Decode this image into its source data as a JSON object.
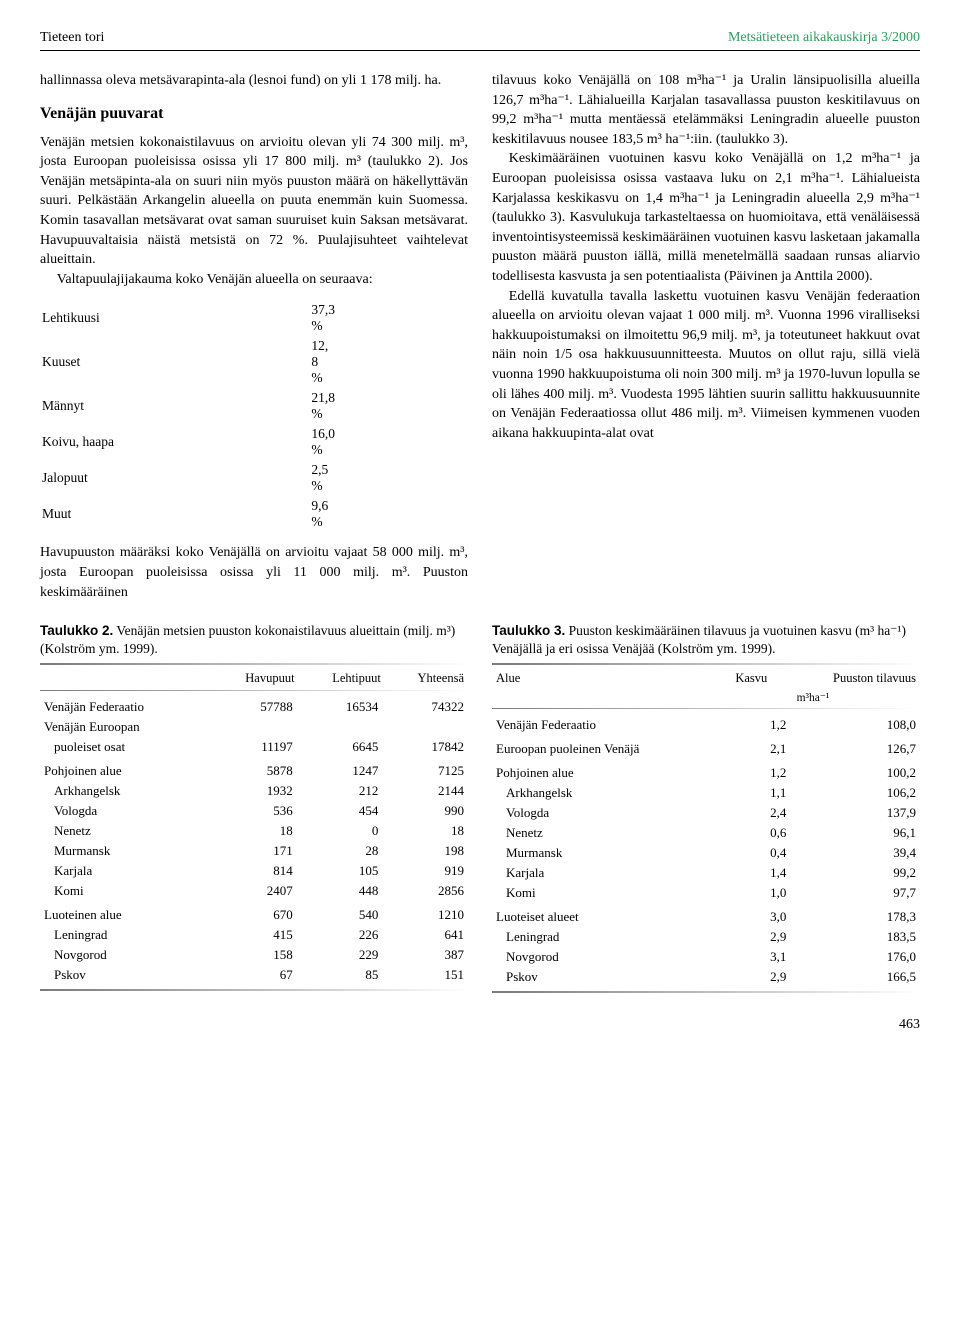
{
  "header": {
    "left": "Tieteen tori",
    "right": "Metsätieteen aikakauskirja 3/2000"
  },
  "left_col": {
    "p1": "hallinnassa oleva metsävarapinta-ala (lesnoi fund) on yli 1 178 milj. ha.",
    "section": "Venäjän puuvarat",
    "p2_before": "Venäjän metsien kokonaistilavuus on arvioitu olevan yli 74 300 milj. m³, josta Euroopan puoleisissa osissa yli 17 800 milj. m³ (taulukko 2). Jos Venäjän metsäpinta-ala on suuri niin myös puuston määrä on häkellyttävän suuri. Pelkästään Arkangelin alueella on puuta enemmän kuin Suomessa. Komin tasavallan metsävarat ovat saman suuruiset kuin Saksan metsävarat. Havupuuvaltaisia näistä metsistä on 72 %. Puulajisuhteet vaihtelevat alueittain.",
    "p2_after": "Valtapuulajijakauma koko Venäjän alueella on seuraava:",
    "species": [
      {
        "name": "Lehtikuusi",
        "pct": "37,3 %"
      },
      {
        "name": "Kuuset",
        "pct": "12, 8 %"
      },
      {
        "name": "Männyt",
        "pct": "21,8 %"
      },
      {
        "name": "Koivu, haapa",
        "pct": "16,0 %"
      },
      {
        "name": "Jalopuut",
        "pct": "2,5 %"
      },
      {
        "name": "Muut",
        "pct": "9,6 %"
      }
    ],
    "p3": "Havupuuston määräksi koko Venäjällä on arvioitu vajaat 58 000 milj. m³, josta Euroopan puoleisissa osissa yli 11 000 milj. m³. Puuston keskimääräinen"
  },
  "right_col": {
    "p1": "tilavuus koko Venäjällä on 108 m³ha⁻¹ ja Uralin länsipuolisilla alueilla 126,7 m³ha⁻¹. Lähialueilla Karjalan tasavallassa puuston keskitilavuus on 99,2 m³ha⁻¹ mutta mentäessä etelämmäksi Leningradin alueelle puuston keskitilavuus nousee 183,5 m³ ha⁻¹:iin. (taulukko 3).",
    "p2": "Keskimääräinen vuotuinen kasvu koko Venäjällä on 1,2 m³ha⁻¹ ja Euroopan puoleisissa osissa vastaava luku on 2,1 m³ha⁻¹. Lähialueista Karjalassa keskikasvu on 1,4 m³ha⁻¹ ja Leningradin alueella 2,9 m³ha⁻¹ (taulukko 3). Kasvulukuja tarkasteltaessa on huomioitava, että venäläisessä inventointisysteemissä keskimääräinen vuotuinen kasvu lasketaan jakamalla puuston määrä puuston iällä, millä menetelmällä saadaan runsas aliarvio todellisesta kasvusta ja sen potentiaalista (Päivinen ja Anttila 2000).",
    "p3": "Edellä kuvatulla tavalla laskettu vuotuinen kasvu Venäjän federaation alueella on arvioitu olevan vajaat 1 000 milj. m³. Vuonna 1996 viralliseksi hakkuupoistumaksi on ilmoitettu 96,9 milj. m³, ja toteutuneet hakkuut ovat näin noin 1/5 osa hakkuusuunnitteesta. Muutos on ollut raju, sillä vielä vuonna 1990 hakkuupoistuma oli noin 300 milj. m³ ja 1970-luvun lopulla se oli lähes 400 milj. m³. Vuodesta 1995 lähtien suurin sallittu hakkuusuunnite on Venäjän Federaatiossa ollut 486 milj. m³. Viimeisen kymmenen vuoden aikana hakkuupinta-alat ovat"
  },
  "table2": {
    "caption_bold": "Taulukko 2.",
    "caption": " Venäjän metsien puuston kokonaistilavuus alueittain (milj. m³) (Kolström ym. 1999).",
    "headers": [
      "",
      "Havupuut",
      "Lehtipuut",
      "Yhteensä"
    ],
    "rows": [
      {
        "label": "Venäjän Federaatio",
        "v": [
          "57788",
          "16534",
          "74322"
        ],
        "group": true
      },
      {
        "label": "Venäjän Euroopan",
        "v": [
          "",
          "",
          ""
        ],
        "group": true,
        "nl": true
      },
      {
        "label": "puoleiset osat",
        "v": [
          "11197",
          "6645",
          "17842"
        ],
        "indent": true
      },
      {
        "label": "Pohjoinen alue",
        "v": [
          "5878",
          "1247",
          "7125"
        ],
        "group": true
      },
      {
        "label": "Arkhangelsk",
        "v": [
          "1932",
          "212",
          "2144"
        ],
        "indent": true
      },
      {
        "label": "Vologda",
        "v": [
          "536",
          "454",
          "990"
        ],
        "indent": true
      },
      {
        "label": "Nenetz",
        "v": [
          "18",
          "0",
          "18"
        ],
        "indent": true
      },
      {
        "label": "Murmansk",
        "v": [
          "171",
          "28",
          "198"
        ],
        "indent": true
      },
      {
        "label": "Karjala",
        "v": [
          "814",
          "105",
          "919"
        ],
        "indent": true
      },
      {
        "label": "Komi",
        "v": [
          "2407",
          "448",
          "2856"
        ],
        "indent": true
      },
      {
        "label": "Luoteinen alue",
        "v": [
          "670",
          "540",
          "1210"
        ],
        "group": true
      },
      {
        "label": "Leningrad",
        "v": [
          "415",
          "226",
          "641"
        ],
        "indent": true
      },
      {
        "label": "Novgorod",
        "v": [
          "158",
          "229",
          "387"
        ],
        "indent": true
      },
      {
        "label": "Pskov",
        "v": [
          "67",
          "85",
          "151"
        ],
        "indent": true
      }
    ]
  },
  "table3": {
    "caption_bold": "Taulukko 3.",
    "caption": " Puuston keskimääräinen tilavuus ja vuotuinen kasvu (m³ ha⁻¹) Venäjällä ja eri osissa Venäjää (Kolström ym. 1999).",
    "headers": [
      "Alue",
      "Kasvu",
      "Puuston tilavuus"
    ],
    "unit": "m³ha⁻¹",
    "rows": [
      {
        "label": "Venäjän Federaatio",
        "v": [
          "1,2",
          "108,0"
        ],
        "group": true
      },
      {
        "label": "Euroopan puoleinen Venäjä",
        "v": [
          "2,1",
          "126,7"
        ],
        "group": true
      },
      {
        "label": "Pohjoinen alue",
        "v": [
          "1,2",
          "100,2"
        ],
        "group": true
      },
      {
        "label": "Arkhangelsk",
        "v": [
          "1,1",
          "106,2"
        ],
        "indent": true
      },
      {
        "label": "Vologda",
        "v": [
          "2,4",
          "137,9"
        ],
        "indent": true
      },
      {
        "label": "Nenetz",
        "v": [
          "0,6",
          "96,1"
        ],
        "indent": true
      },
      {
        "label": "Murmansk",
        "v": [
          "0,4",
          "39,4"
        ],
        "indent": true
      },
      {
        "label": "Karjala",
        "v": [
          "1,4",
          "99,2"
        ],
        "indent": true
      },
      {
        "label": "Komi",
        "v": [
          "1,0",
          "97,7"
        ],
        "indent": true
      },
      {
        "label": "Luoteiset alueet",
        "v": [
          "3,0",
          "178,3"
        ],
        "group": true
      },
      {
        "label": "Leningrad",
        "v": [
          "2,9",
          "183,5"
        ],
        "indent": true
      },
      {
        "label": "Novgorod",
        "v": [
          "3,1",
          "176,0"
        ],
        "indent": true
      },
      {
        "label": "Pskov",
        "v": [
          "2,9",
          "166,5"
        ],
        "indent": true
      }
    ]
  },
  "page_number": "463"
}
